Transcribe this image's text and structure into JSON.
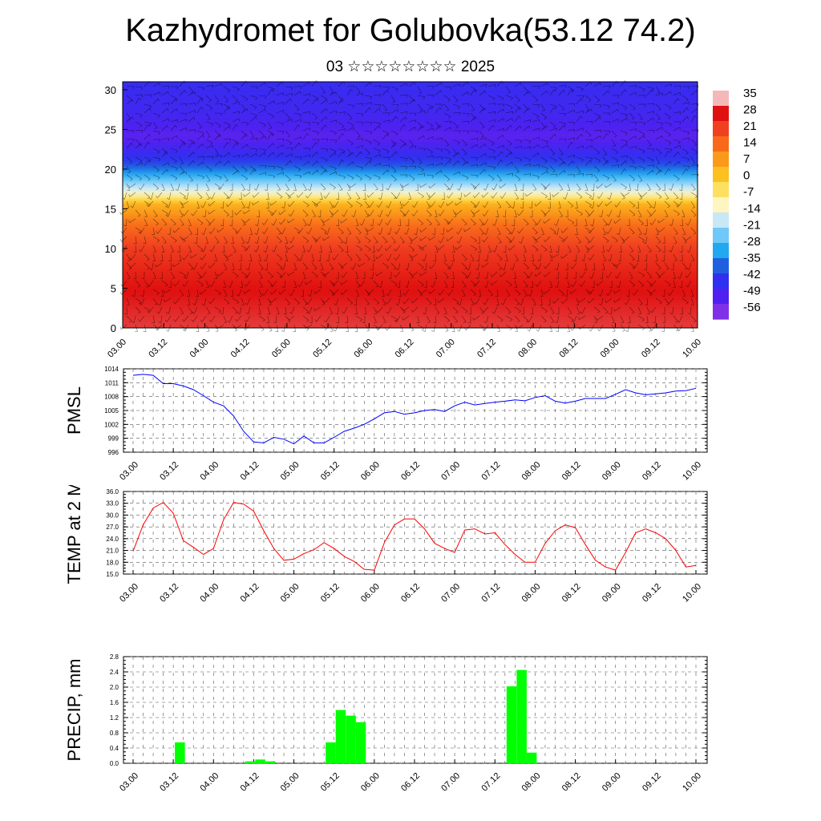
{
  "page": {
    "title": "Kazhydromet for Golubovka(53.12 74.2)",
    "subtitle": "03 ☆☆☆☆☆☆☆☆ 2025"
  },
  "chart_data": [
    {
      "type": "heatmap",
      "title": "",
      "xlabel": "",
      "ylabel": "",
      "x_tick_labels": [
        "03.00",
        "03.12",
        "04.00",
        "04.12",
        "05.00",
        "05.12",
        "06.00",
        "06.12",
        "07.00",
        "07.12",
        "08.00",
        "08.12",
        "09.00",
        "09.12",
        "10.00"
      ],
      "y_ticks": [
        0,
        5,
        10,
        15,
        20,
        25,
        30
      ],
      "ylim": [
        0,
        31
      ],
      "colorbar": {
        "labels": [
          35,
          28,
          21,
          14,
          7,
          0,
          -7,
          -14,
          -21,
          -28,
          -35,
          -42,
          -49,
          -56
        ],
        "colors": [
          "#f4b8b8",
          "#e01010",
          "#f04020",
          "#f86a1a",
          "#fb9a1a",
          "#fcc020",
          "#fde060",
          "#fff5c0",
          "#c8e8f8",
          "#70c8f8",
          "#20a8f0",
          "#2060e0",
          "#3030f0",
          "#5020f0",
          "#8030e8"
        ]
      },
      "profile": [
        {
          "y": 0,
          "value": 30
        },
        {
          "y": 5,
          "value": 28
        },
        {
          "y": 10,
          "value": 22
        },
        {
          "y": 13,
          "value": 14
        },
        {
          "y": 15.5,
          "value": 4
        },
        {
          "y": 17,
          "value": -14
        },
        {
          "y": 19,
          "value": -30
        },
        {
          "y": 21,
          "value": -45
        },
        {
          "y": 24,
          "value": -55
        },
        {
          "y": 27,
          "value": -50
        },
        {
          "y": 31,
          "value": -48
        }
      ],
      "overlay": "wind barbs"
    },
    {
      "type": "line",
      "ylabel": "PMSL",
      "ylim": [
        996,
        1014
      ],
      "y_ticks": [
        996,
        999,
        1002,
        1005,
        1008,
        1011,
        1014
      ],
      "x_tick_labels": [
        "03.00",
        "03.12",
        "04.00",
        "04.12",
        "05.00",
        "05.12",
        "06.00",
        "06.12",
        "07.00",
        "07.12",
        "08.00",
        "08.12",
        "09.00",
        "09.12",
        "10.00"
      ],
      "x_step_hours": 3,
      "color": "#0000ff",
      "values": [
        1012.6,
        1012.8,
        1012.6,
        1010.8,
        1010.8,
        1010.3,
        1009.5,
        1008.2,
        1006.8,
        1006.0,
        1003.8,
        1000.5,
        998.2,
        998.0,
        999.2,
        998.8,
        997.8,
        999.5,
        998.0,
        998.0,
        999.2,
        1000.5,
        1001.2,
        1002.0,
        1003.2,
        1004.5,
        1004.8,
        1004.2,
        1004.5,
        1005.0,
        1005.2,
        1004.8,
        1006.0,
        1006.8,
        1006.2,
        1006.5,
        1006.8,
        1007.0,
        1007.3,
        1007.1,
        1007.8,
        1008.2,
        1007.0,
        1006.6,
        1007.0,
        1007.6,
        1007.6,
        1007.6,
        1008.5,
        1009.5,
        1008.8,
        1008.4,
        1008.6,
        1008.8,
        1009.2,
        1009.3,
        1009.8
      ]
    },
    {
      "type": "line",
      "ylabel": "TEMP at 2 M",
      "ylim": [
        15,
        36
      ],
      "y_ticks": [
        "15.0",
        "18.0",
        "21.0",
        "24.0",
        "27.0",
        "30.0",
        "33.0",
        "36.0"
      ],
      "x_tick_labels": [
        "03.00",
        "03.12",
        "04.00",
        "04.12",
        "05.00",
        "05.12",
        "06.00",
        "06.12",
        "07.00",
        "07.12",
        "08.00",
        "08.12",
        "09.00",
        "09.12",
        "10.00"
      ],
      "x_step_hours": 3,
      "color": "#ff0000",
      "values": [
        20.8,
        27.5,
        31.8,
        33.2,
        30.5,
        23.5,
        21.8,
        20.0,
        21.5,
        28.8,
        33.2,
        32.8,
        31.0,
        26.0,
        21.5,
        18.5,
        18.8,
        20.2,
        21.2,
        23.0,
        21.5,
        19.5,
        18.2,
        16.2,
        16.0,
        23.0,
        27.5,
        29.0,
        29.0,
        26.5,
        22.8,
        21.5,
        20.5,
        26.2,
        26.5,
        25.2,
        25.5,
        22.5,
        20.0,
        18.0,
        18.0,
        22.8,
        26.0,
        27.5,
        26.8,
        22.5,
        18.5,
        16.8,
        16.0,
        20.5,
        25.5,
        26.5,
        25.5,
        24.0,
        21.0,
        16.8,
        17.2
      ]
    },
    {
      "type": "bar",
      "ylabel": "PRECIP, mm",
      "ylim": [
        0,
        2.8
      ],
      "y_ticks": [
        "0.0",
        "0.4",
        "0.8",
        "1.2",
        "1.6",
        "2.0",
        "2.4",
        "2.8"
      ],
      "x_tick_labels": [
        "03.00",
        "03.12",
        "04.00",
        "04.12",
        "05.00",
        "05.12",
        "06.00",
        "06.12",
        "07.00",
        "07.12",
        "08.00",
        "08.12",
        "09.00",
        "09.12",
        "10.00"
      ],
      "x_step_hours": 3,
      "color": "#00ff00",
      "values": [
        0,
        0,
        0,
        0,
        0.55,
        0,
        0,
        0,
        0,
        0,
        0,
        0.05,
        0.1,
        0.05,
        0,
        0,
        0,
        0,
        0,
        0.55,
        1.4,
        1.25,
        1.08,
        0,
        0,
        0,
        0,
        0,
        0,
        0,
        0,
        0,
        0,
        0,
        0,
        0,
        0,
        2.02,
        2.45,
        0.28,
        0,
        0,
        0,
        0,
        0,
        0,
        0,
        0,
        0,
        0,
        0,
        0,
        0,
        0,
        0,
        0
      ]
    }
  ]
}
